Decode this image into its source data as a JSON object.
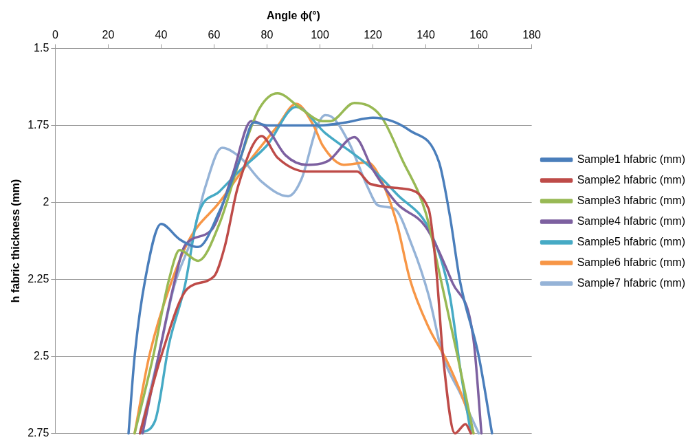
{
  "chart_data": {
    "type": "line",
    "xlabel": "Angle ϕ(°)",
    "ylabel": "h fabric thickness (mm)",
    "xlim": [
      0,
      180
    ],
    "xticks": [
      0,
      20,
      40,
      60,
      80,
      100,
      120,
      140,
      160,
      180
    ],
    "ylim": [
      2.75,
      1.5
    ],
    "yticks": [
      1.5,
      1.75,
      2,
      2.25,
      2.5,
      2.75
    ],
    "grid": "y",
    "legend": "right",
    "marker": "none",
    "line_style": "solid",
    "series": [
      {
        "name": "Sample1 hfabric (mm)",
        "color": "#4a7ebb",
        "x": [
          27.7,
          30,
          34,
          40,
          47,
          54,
          62,
          70,
          75,
          80,
          90,
          100,
          110,
          120,
          134,
          145,
          149,
          153,
          160,
          165
        ],
        "values": [
          2.75,
          2.5,
          2.25,
          2.07,
          2.12,
          2.145,
          2.03,
          1.855,
          1.74,
          1.75,
          1.75,
          1.75,
          1.74,
          1.725,
          1.767,
          1.87,
          2.04,
          2.26,
          2.5,
          2.75
        ]
      },
      {
        "name": "Sample2 hfabric (mm)",
        "color": "#be4b48",
        "x": [
          32,
          40,
          50,
          60,
          64,
          69,
          78,
          84,
          95,
          114,
          119,
          131,
          141,
          144,
          146.5,
          151,
          155,
          157
        ],
        "values": [
          2.75,
          2.5,
          2.28,
          2.24,
          2.145,
          1.95,
          1.785,
          1.855,
          1.9,
          1.9,
          1.94,
          1.955,
          2.02,
          2.225,
          2.5,
          2.75,
          2.72,
          2.75
        ]
      },
      {
        "name": "Sample3 hfabric (mm)",
        "color": "#98b954",
        "x": [
          30,
          37,
          43,
          47,
          54,
          62,
          70,
          77,
          84,
          93,
          101,
          104,
          113,
          123,
          131,
          140,
          145,
          152,
          158
        ],
        "values": [
          2.75,
          2.5,
          2.25,
          2.155,
          2.19,
          2.07,
          1.855,
          1.697,
          1.646,
          1.697,
          1.736,
          1.736,
          1.677,
          1.72,
          1.86,
          2.035,
          2.225,
          2.5,
          2.75
        ]
      },
      {
        "name": "Sample4 hfabric (mm)",
        "color": "#7d60a0",
        "x": [
          33,
          39,
          45,
          49,
          59,
          67,
          74,
          80,
          87,
          95,
          103,
          113,
          120,
          129,
          140,
          150,
          158,
          161
        ],
        "values": [
          2.75,
          2.5,
          2.26,
          2.14,
          2.09,
          1.91,
          1.736,
          1.76,
          1.847,
          1.878,
          1.866,
          1.788,
          1.894,
          2.003,
          2.08,
          2.26,
          2.445,
          2.75
        ]
      },
      {
        "name": "Sample5 hfabric (mm)",
        "color": "#46aac5",
        "x": [
          32,
          37.7,
          43,
          49,
          54,
          62,
          70,
          80,
          91,
          102,
          118,
          129,
          142,
          149,
          153,
          157
        ],
        "values": [
          2.75,
          2.71,
          2.46,
          2.27,
          2.04,
          1.965,
          1.895,
          1.815,
          1.69,
          1.775,
          1.878,
          1.973,
          2.1,
          2.3,
          2.54,
          2.75
        ]
      },
      {
        "name": "Sample6 hfabric (mm)",
        "color": "#f79646",
        "x": [
          30,
          35.5,
          43,
          51,
          62,
          73,
          84,
          91,
          97.7,
          101,
          109,
          118,
          123,
          129,
          134,
          141,
          148,
          155,
          158
        ],
        "values": [
          2.75,
          2.5,
          2.28,
          2.115,
          2.0,
          1.87,
          1.752,
          1.68,
          1.752,
          1.815,
          1.878,
          1.87,
          1.925,
          2.067,
          2.25,
          2.405,
          2.516,
          2.66,
          2.75
        ]
      },
      {
        "name": "Sample7 hfabric (mm)",
        "color": "#95b3d7",
        "x": [
          32,
          39,
          45,
          52,
          56.7,
          63,
          70,
          78,
          88,
          93,
          99,
          102,
          104,
          111,
          118,
          122,
          128,
          135,
          141,
          146.5,
          153,
          160
        ],
        "values": [
          2.75,
          2.5,
          2.27,
          2.107,
          1.95,
          1.823,
          1.855,
          1.933,
          1.98,
          1.925,
          1.752,
          1.717,
          1.72,
          1.807,
          1.95,
          2.01,
          2.02,
          2.145,
          2.3,
          2.5,
          2.62,
          2.75
        ]
      }
    ]
  }
}
